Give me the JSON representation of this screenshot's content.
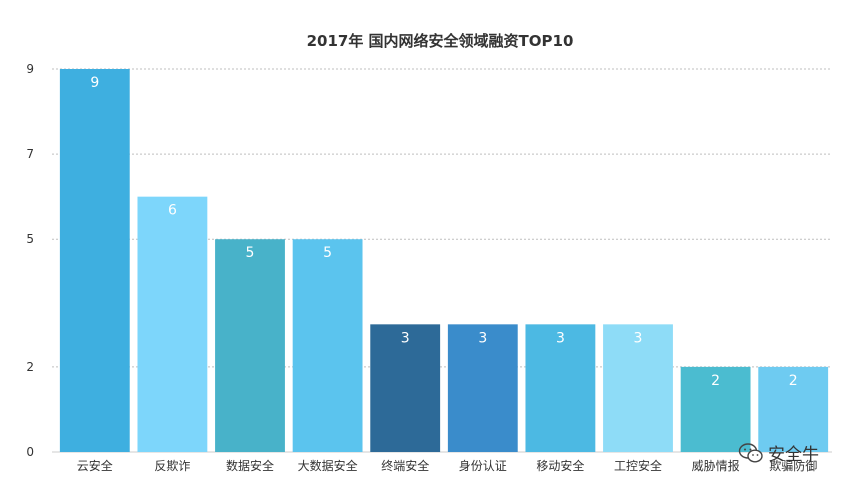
{
  "chart_data": {
    "type": "bar",
    "title": "2017年 国内网络安全领域融资TOP10",
    "categories": [
      "云安全",
      "反欺诈",
      "数据安全",
      "大数据安全",
      "终端安全",
      "身份认证",
      "移动安全",
      "工控安全",
      "威胁情报",
      "欺骗防御"
    ],
    "values": [
      9,
      6,
      5,
      5,
      3,
      3,
      3,
      3,
      2,
      2
    ],
    "data_labels": [
      "9",
      "6",
      "5",
      "5",
      "3",
      "3",
      "3",
      "3",
      "2",
      "2"
    ],
    "colors": [
      "#3eafe0",
      "#7dd6fb",
      "#48b2c9",
      "#5bc4ee",
      "#2d6a98",
      "#3a8ccb",
      "#4cb9e3",
      "#8edcf7",
      "#4bbcd0",
      "#6ecbf1"
    ],
    "ylim": [
      0,
      9
    ],
    "yticks": [
      "0",
      "2",
      "5",
      "7",
      "9"
    ],
    "xlabel": "",
    "ylabel": "",
    "grid": true,
    "legend": "none"
  },
  "watermark": {
    "text": "安全牛",
    "icon": "wechat-icon"
  }
}
